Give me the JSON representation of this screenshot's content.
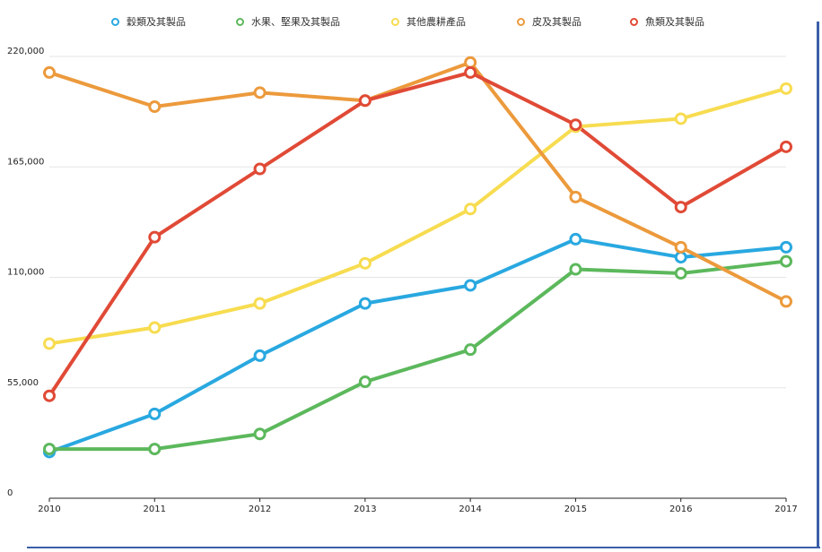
{
  "chart_data": {
    "type": "line",
    "x": [
      "2010",
      "2011",
      "2012",
      "2013",
      "2014",
      "2015",
      "2016",
      "2017"
    ],
    "ylim": [
      0,
      220000
    ],
    "yticks": [
      "0",
      "55,000",
      "110,000",
      "165,000",
      "220,000"
    ],
    "ytick_values": [
      0,
      55000,
      110000,
      165000,
      220000
    ],
    "grid": true,
    "legend_position": "top-center",
    "series": [
      {
        "name": "穀類及其製品",
        "color": "#29a8e0",
        "values": [
          23000,
          42000,
          71000,
          97000,
          106000,
          129000,
          120000,
          125000
        ]
      },
      {
        "name": "水果、堅果及其製品",
        "color": "#5cb85c",
        "values": [
          24500,
          24500,
          32000,
          58000,
          74000,
          114000,
          112000,
          118000
        ]
      },
      {
        "name": "其他農耕產品",
        "color": "#f7dc50",
        "values": [
          77000,
          85000,
          97000,
          117000,
          144000,
          185000,
          189000,
          204000
        ]
      },
      {
        "name": "皮及其製品",
        "color": "#ec9a3c",
        "values": [
          212000,
          195000,
          202000,
          198000,
          217000,
          150000,
          125000,
          98000
        ]
      },
      {
        "name": "魚類及其製品",
        "color": "#e04a36",
        "values": [
          51000,
          130000,
          164000,
          198000,
          212000,
          186000,
          145000,
          175000
        ]
      }
    ]
  }
}
